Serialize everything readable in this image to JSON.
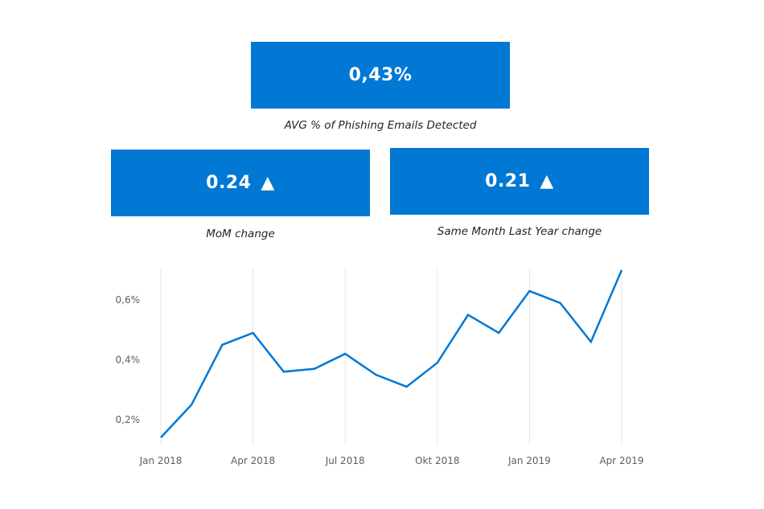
{
  "kpis": {
    "main": {
      "value": "0,43%",
      "caption": "AVG % of Phishing Emails Detected"
    },
    "mom": {
      "value": "0.24",
      "arrow": "▲",
      "caption": "MoM change"
    },
    "yoy": {
      "value": "0.21",
      "arrow": "▲",
      "caption": "Same Month Last Year change"
    }
  },
  "colors": {
    "accent": "#0078d4",
    "gridline": "#e6e6e6",
    "tick_text": "#605e5c"
  },
  "chart_data": {
    "type": "line",
    "x": [
      "2018-01",
      "2018-02",
      "2018-03",
      "2018-04",
      "2018-05",
      "2018-06",
      "2018-07",
      "2018-08",
      "2018-09",
      "2018-10",
      "2018-11",
      "2018-12",
      "2019-01",
      "2019-02",
      "2019-03",
      "2019-04"
    ],
    "series": [
      {
        "values": [
          0.14,
          0.25,
          0.45,
          0.49,
          0.36,
          0.37,
          0.42,
          0.35,
          0.31,
          0.39,
          0.55,
          0.49,
          0.63,
          0.59,
          0.46,
          0.7
        ]
      }
    ],
    "y_unit": "%",
    "x_tick_labels": [
      "Jan 2018",
      "Apr 2018",
      "Jul 2018",
      "Okt 2018",
      "Jan 2019",
      "Apr 2019"
    ],
    "x_tick_indices": [
      0,
      3,
      6,
      9,
      12,
      15
    ],
    "y_ticks": [
      0.2,
      0.4,
      0.6
    ],
    "y_tick_labels": [
      "0,2%",
      "0,4%",
      "0,6%"
    ],
    "ylim": [
      0.135,
      0.705
    ],
    "grid": "vertical",
    "legend": "none"
  }
}
